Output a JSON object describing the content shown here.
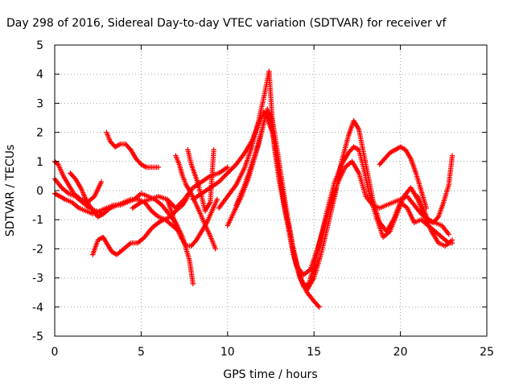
{
  "chart_data": {
    "type": "scatter",
    "title": "Day 298 of 2016, Sidereal Day-to-day VTEC variation (SDTVAR) for receiver vf",
    "xlabel": "GPS time / hours",
    "ylabel": "SDTVAR / TECUs",
    "xlim": [
      0,
      25
    ],
    "ylim": [
      -5,
      5
    ],
    "xticks": [
      0,
      5,
      10,
      15,
      20,
      25
    ],
    "yticks": [
      -5,
      -4,
      -3,
      -2,
      -1,
      0,
      1,
      2,
      3,
      4,
      5
    ],
    "grid": true,
    "marker": "+",
    "series_color": "#ff0000",
    "series": [
      {
        "x": [
          0,
          0.3,
          0.6,
          1.0,
          1.4,
          1.8,
          2.2,
          2.6,
          3.0,
          3.4,
          3.8,
          4.2,
          4.6,
          5.0,
          5.4,
          5.8,
          6.2,
          6.6,
          7.0,
          7.4,
          7.8,
          8.0
        ],
        "y": [
          -0.1,
          -0.2,
          -0.3,
          -0.4,
          -0.6,
          -0.7,
          -0.8,
          -0.7,
          -0.6,
          -0.5,
          -0.5,
          -0.4,
          -0.3,
          -0.1,
          -0.2,
          -0.3,
          -0.5,
          -0.8,
          -1.1,
          -1.6,
          -2.4,
          -3.2
        ]
      },
      {
        "x": [
          0,
          0.4,
          0.8,
          1.2,
          1.6,
          2.0,
          2.4,
          2.8,
          3.2,
          3.6,
          4.0,
          4.4,
          4.8,
          5.2,
          5.6,
          6.0,
          6.4,
          6.8,
          7.2
        ],
        "y": [
          0.4,
          0.1,
          -0.1,
          -0.2,
          -0.4,
          -0.6,
          -0.7,
          -0.8,
          -0.6,
          -0.5,
          -0.4,
          -0.3,
          -0.3,
          -0.4,
          -0.7,
          -0.9,
          -1.0,
          -1.2,
          -1.4
        ]
      },
      {
        "x": [
          0,
          0.2,
          0.5,
          0.8,
          1.1,
          1.5,
          1.9,
          2.3,
          2.7
        ],
        "y": [
          1.0,
          0.9,
          0.5,
          0.2,
          -0.1,
          -0.3,
          -0.4,
          -0.2,
          0.3
        ]
      },
      {
        "x": [
          0.9,
          1.2,
          1.5,
          1.8,
          2.1,
          2.5,
          2.8,
          3.2,
          3.6
        ],
        "y": [
          0.6,
          0.4,
          0.1,
          -0.3,
          -0.6,
          -0.9,
          -0.8,
          -0.6,
          -0.5
        ]
      },
      {
        "x": [
          2.2,
          2.5,
          2.8,
          3.0,
          3.3,
          3.6,
          4.0,
          4.4,
          4.8,
          5.2,
          5.6,
          6.0,
          6.3,
          6.7,
          7.0,
          7.4,
          7.7
        ],
        "y": [
          -2.2,
          -1.7,
          -1.6,
          -1.8,
          -2.1,
          -2.2,
          -2.0,
          -1.8,
          -1.8,
          -1.6,
          -1.3,
          -1.1,
          -1.0,
          -0.9,
          -0.7,
          -0.5,
          -0.2
        ]
      },
      {
        "x": [
          3.0,
          3.2,
          3.5,
          3.8,
          4.1,
          4.4,
          4.7,
          5.0,
          5.3,
          5.6,
          6.0
        ],
        "y": [
          2.0,
          1.7,
          1.5,
          1.6,
          1.6,
          1.4,
          1.1,
          0.9,
          0.8,
          0.8,
          0.8
        ]
      },
      {
        "x": [
          4.5,
          5.0,
          5.5,
          6.0,
          6.5,
          7.0,
          7.5,
          8.0,
          8.5,
          9.0,
          9.5,
          10.0
        ],
        "y": [
          -0.6,
          -0.4,
          -0.3,
          -0.2,
          -0.3,
          -0.6,
          -0.3,
          0.1,
          0.3,
          0.5,
          0.6,
          0.8
        ]
      },
      {
        "x": [
          6.5,
          6.8,
          7.0,
          7.3,
          7.6,
          7.9,
          8.2,
          8.5,
          8.8,
          9.1,
          9.4
        ],
        "y": [
          -0.3,
          -0.8,
          -1.2,
          -1.6,
          -1.9,
          -1.9,
          -1.7,
          -1.4,
          -1.1,
          -0.7,
          -0.3
        ]
      },
      {
        "x": [
          7.0,
          7.2,
          7.4,
          7.6,
          7.9,
          8.2,
          8.5,
          8.8,
          9.1,
          9.3
        ],
        "y": [
          1.2,
          0.9,
          0.5,
          0.2,
          -0.1,
          -0.5,
          -0.9,
          -1.3,
          -1.7,
          -2.0
        ]
      },
      {
        "x": [
          7.7,
          7.9,
          8.2,
          8.5,
          8.7,
          9.0,
          9.2
        ],
        "y": [
          1.4,
          0.9,
          0.4,
          -0.2,
          -0.7,
          -0.4,
          1.4
        ]
      },
      {
        "x": [
          8.0,
          8.5,
          9.0,
          9.5,
          10.0,
          10.5,
          11.0,
          11.4,
          11.8,
          12.1,
          12.4,
          12.7,
          13.0,
          13.3,
          13.7,
          14.0,
          14.4,
          14.8,
          15.2,
          15.6,
          16.0,
          16.4,
          16.8,
          17.2,
          17.6,
          18.0,
          18.4,
          18.8,
          19.2,
          19.6,
          20.0,
          20.4,
          20.8,
          21.2,
          21.6,
          22.0,
          22.4,
          22.8
        ],
        "y": [
          -0.3,
          -0.1,
          0.1,
          0.3,
          0.6,
          0.9,
          1.3,
          1.7,
          2.3,
          2.7,
          2.5,
          1.7,
          0.6,
          -0.6,
          -1.8,
          -2.6,
          -2.9,
          -2.7,
          -2.0,
          -1.2,
          -0.4,
          0.3,
          0.8,
          1.0,
          0.6,
          -0.2,
          -0.5,
          -0.6,
          -0.5,
          -0.4,
          -0.3,
          -0.2,
          -0.5,
          -0.8,
          -1.0,
          -1.1,
          -1.2,
          -1.5
        ]
      },
      {
        "x": [
          9.5,
          10.0,
          10.5,
          11.0,
          11.4,
          11.8,
          12.1,
          12.4,
          12.7,
          13.0,
          13.4,
          13.8,
          14.2,
          14.6,
          15.0,
          15.3
        ],
        "y": [
          -0.6,
          -0.2,
          0.2,
          0.8,
          1.5,
          2.4,
          3.2,
          4.1,
          1.5,
          0.3,
          -0.9,
          -2.0,
          -3.0,
          -3.5,
          -3.8,
          -4.0
        ]
      },
      {
        "x": [
          10.0,
          10.4,
          10.8,
          11.2,
          11.6,
          12.0,
          12.3,
          12.6,
          12.9,
          13.2,
          13.5,
          13.8,
          14.1,
          14.4,
          14.7,
          15.0,
          15.4,
          15.8,
          16.2,
          16.6,
          17.0,
          17.3,
          17.6,
          17.9,
          18.2,
          18.6,
          19.0,
          19.4,
          19.8,
          20.2,
          20.6,
          21.0,
          21.4,
          21.8,
          22.2,
          22.6,
          23.0
        ],
        "y": [
          -1.2,
          -0.7,
          -0.2,
          0.4,
          1.2,
          2.1,
          2.8,
          2.4,
          1.3,
          0.1,
          -1.0,
          -2.0,
          -2.8,
          -3.3,
          -3.2,
          -2.6,
          -1.6,
          -0.6,
          0.3,
          0.9,
          1.3,
          1.5,
          1.4,
          0.7,
          -0.1,
          -0.9,
          -1.6,
          -1.4,
          -0.8,
          -0.2,
          0.1,
          -0.3,
          -0.9,
          -1.4,
          -1.8,
          -1.9,
          -1.7
        ]
      },
      {
        "x": [
          10.5,
          11.0,
          11.4,
          11.8,
          12.2,
          12.6,
          13.0,
          13.4,
          13.8,
          14.2,
          14.6,
          15.0,
          15.4,
          15.8,
          16.2,
          16.6,
          17.0,
          17.3,
          17.6,
          18.0,
          18.4,
          18.8,
          19.2,
          19.6,
          20.0,
          20.4,
          20.8,
          21.2,
          21.6,
          22.0,
          22.4,
          22.8,
          23.0
        ],
        "y": [
          -0.5,
          0.2,
          0.9,
          1.6,
          2.6,
          2.0,
          0.6,
          -0.9,
          -2.2,
          -3.0,
          -3.4,
          -3.0,
          -2.2,
          -1.2,
          -0.2,
          1.0,
          1.9,
          2.4,
          2.1,
          0.9,
          -0.3,
          -1.1,
          -1.4,
          -1.0,
          -0.4,
          -0.6,
          -1.1,
          -1.0,
          -1.2,
          -1.4,
          -1.6,
          -1.8,
          -1.8
        ]
      },
      {
        "x": [
          18.8,
          19.1,
          19.4,
          19.7,
          20.0,
          20.3,
          20.6,
          20.9,
          21.2,
          21.5
        ],
        "y": [
          0.9,
          1.1,
          1.3,
          1.4,
          1.5,
          1.4,
          1.1,
          0.6,
          0.0,
          -0.6
        ]
      },
      {
        "x": [
          21.0,
          21.3,
          21.6,
          21.9,
          22.2,
          22.5,
          22.8,
          23.0
        ],
        "y": [
          -0.2,
          -0.6,
          -1.0,
          -1.1,
          -0.9,
          -0.4,
          0.2,
          1.2
        ]
      }
    ]
  }
}
